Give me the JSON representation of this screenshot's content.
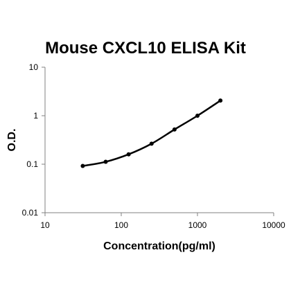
{
  "chart_data": {
    "type": "line",
    "title": "Mouse CXCL10 ELISA Kit",
    "xlabel": "Concentration(pg/ml)",
    "ylabel": "O.D.",
    "xscale": "log",
    "yscale": "log",
    "xlim": [
      10,
      10000
    ],
    "ylim": [
      0.01,
      10
    ],
    "x_ticks": [
      "10",
      "100",
      "1000",
      "10000"
    ],
    "y_ticks": [
      "0.01",
      "0.1",
      "1",
      "10"
    ],
    "grid": false,
    "legend": "none",
    "colors": {
      "line": "#000000",
      "axis": "#808080"
    },
    "series": [
      {
        "x": [
          31.25,
          62.5,
          125,
          250,
          500,
          1000,
          2000
        ],
        "y": [
          0.092,
          0.112,
          0.16,
          0.265,
          0.52,
          1.0,
          2.05
        ]
      }
    ]
  }
}
